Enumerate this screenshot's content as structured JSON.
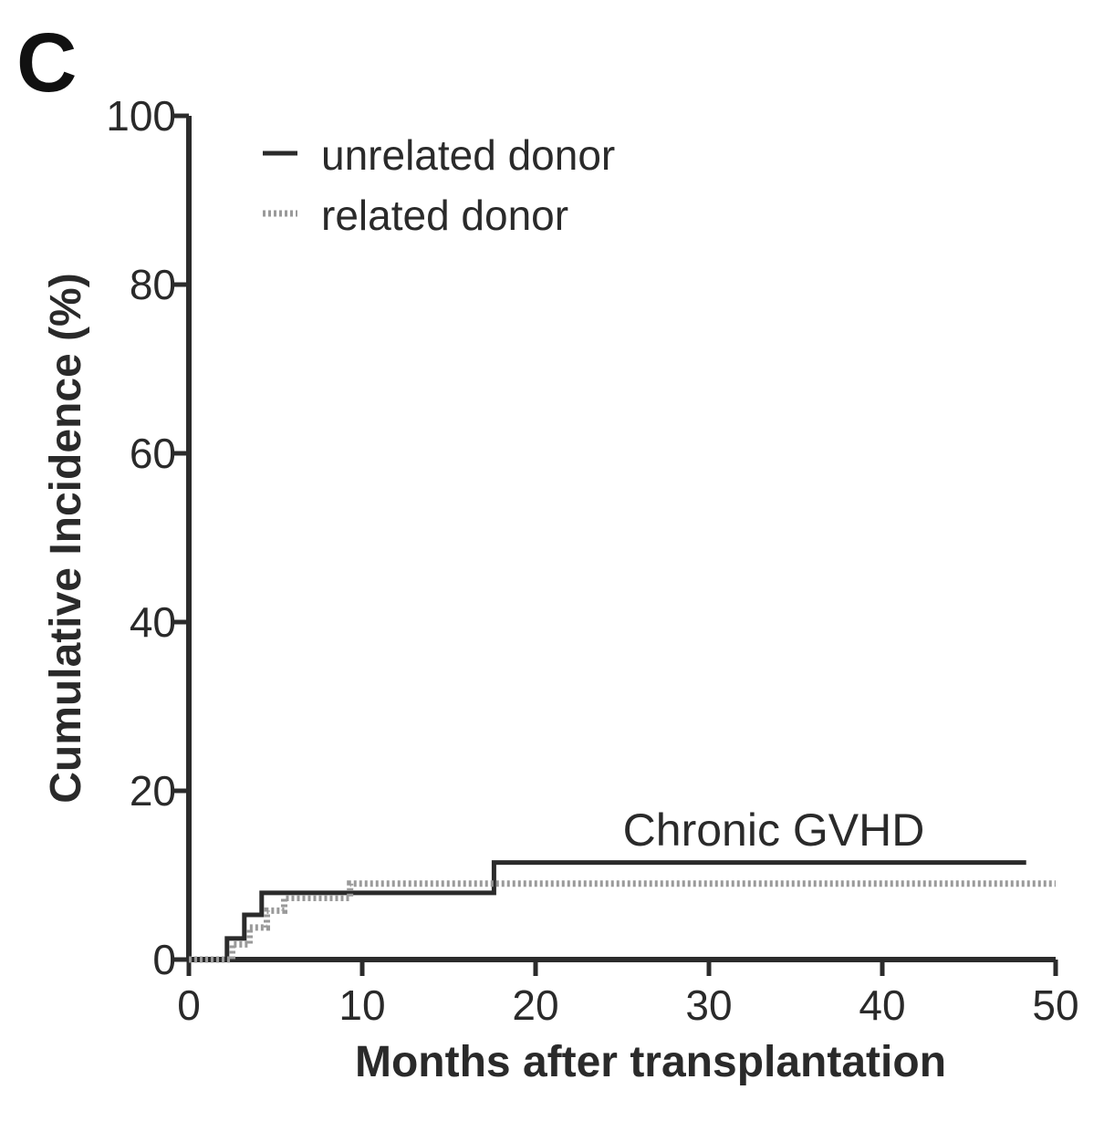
{
  "panel_label": "C",
  "chart_data": {
    "type": "line",
    "step": true,
    "title": "",
    "xlabel": "Months after transplantation",
    "ylabel": "Cumulative Incidence (%)",
    "xlim": [
      0,
      50
    ],
    "ylim": [
      0,
      100
    ],
    "xticks": [
      0,
      10,
      20,
      30,
      40,
      50
    ],
    "yticks": [
      0,
      20,
      40,
      60,
      80,
      100
    ],
    "grid": false,
    "legend": "top-left",
    "annotation": "Chronic GVHD",
    "series": [
      {
        "name": "unrelated donor",
        "style": "solid",
        "color": "#2b2b2b",
        "x": [
          0,
          1.2,
          2.2,
          3.2,
          4.2,
          17.6,
          48.3
        ],
        "y": [
          0,
          0,
          2.5,
          5.3,
          7.9,
          11.5,
          11.5
        ]
      },
      {
        "name": "related donor",
        "style": "dotted",
        "color": "#9a9a9a",
        "x": [
          0,
          1.5,
          2.5,
          3.5,
          4.5,
          5.5,
          9.3,
          50
        ],
        "y": [
          0,
          0,
          1.8,
          3.8,
          5.8,
          7.3,
          9.0,
          9.0
        ]
      }
    ]
  }
}
